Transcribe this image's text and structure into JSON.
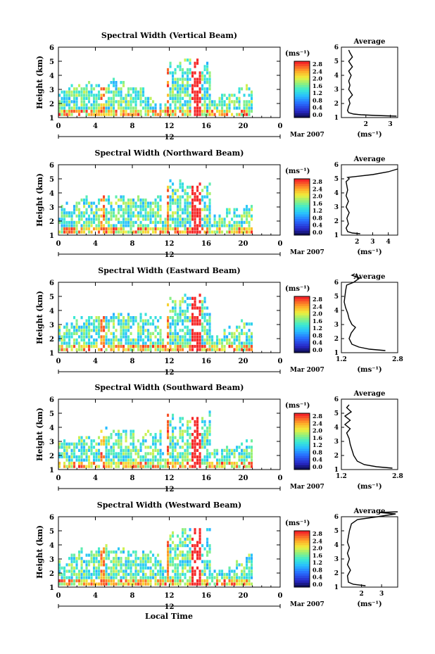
{
  "figure": {
    "xlabel": "Local Time"
  },
  "chart_data": [
    {
      "type": "heatmap",
      "title": "Spectral Width (Vertical Beam)",
      "ylabel": "Height (km)",
      "xticks": [
        "0",
        "4",
        "8",
        "12",
        "16",
        "20",
        "0"
      ],
      "xlim": [
        0,
        24
      ],
      "ylim": [
        1,
        6
      ],
      "yticks": [
        "1",
        "2",
        "3",
        "4",
        "5",
        "6"
      ],
      "date_label_day": "12",
      "date_label_month": "Mar 2007",
      "colorbar": {
        "unit": "(ms⁻¹)",
        "ticks": [
          "2.8",
          "2.4",
          "2.0",
          "1.6",
          "1.2",
          "0.8",
          "0.4",
          "0.0"
        ],
        "range": [
          0,
          2.8
        ]
      },
      "average": {
        "title": "Average",
        "xlabel": "(ms⁻¹)",
        "xlim": [
          1.0,
          3.3
        ],
        "xticks": [
          "2",
          "3"
        ],
        "xtick_values": [
          2,
          3
        ],
        "ylim": [
          1,
          6
        ],
        "yticks": [
          "1",
          "2",
          "3",
          "4",
          "5",
          "6"
        ],
        "profile": [
          [
            3.25,
            1.1
          ],
          [
            2.4,
            1.15
          ],
          [
            1.8,
            1.2
          ],
          [
            1.5,
            1.25
          ],
          [
            1.3,
            1.35
          ],
          [
            1.25,
            1.5
          ],
          [
            1.3,
            1.8
          ],
          [
            1.35,
            2.0
          ],
          [
            1.3,
            2.3
          ],
          [
            1.45,
            2.6
          ],
          [
            1.3,
            3.0
          ],
          [
            1.35,
            3.3
          ],
          [
            1.3,
            3.6
          ],
          [
            1.4,
            4.0
          ],
          [
            1.3,
            4.3
          ],
          [
            1.45,
            4.6
          ],
          [
            1.3,
            5.0
          ],
          [
            1.45,
            5.3
          ],
          [
            1.35,
            5.6
          ],
          [
            1.3,
            5.8
          ]
        ]
      }
    },
    {
      "type": "heatmap",
      "title": "Spectral Width (Northward Beam)",
      "ylabel": "Height (km)",
      "xticks": [
        "0",
        "4",
        "8",
        "12",
        "16",
        "20",
        "0"
      ],
      "xlim": [
        0,
        24
      ],
      "ylim": [
        1,
        6
      ],
      "yticks": [
        "1",
        "2",
        "3",
        "4",
        "5",
        "6"
      ],
      "date_label_day": "12",
      "date_label_month": "Mar 2007",
      "colorbar": {
        "unit": "(ms⁻¹)",
        "ticks": [
          "2.8",
          "2.4",
          "2.0",
          "1.6",
          "1.2",
          "0.8",
          "0.4",
          "0.0"
        ],
        "range": [
          0,
          2.8
        ]
      },
      "average": {
        "title": "Average",
        "xlabel": "(ms⁻¹)",
        "xlim": [
          1.0,
          4.6
        ],
        "xticks": [
          "2",
          "3",
          "4"
        ],
        "xtick_values": [
          2,
          3,
          4
        ],
        "ylim": [
          1,
          6
        ],
        "yticks": [
          "1",
          "2",
          "3",
          "4",
          "5",
          "6"
        ],
        "profile": [
          [
            2.2,
            1.1
          ],
          [
            1.7,
            1.15
          ],
          [
            1.4,
            1.25
          ],
          [
            1.3,
            1.5
          ],
          [
            1.45,
            1.8
          ],
          [
            1.35,
            2.2
          ],
          [
            1.5,
            2.6
          ],
          [
            1.3,
            3.0
          ],
          [
            1.45,
            3.4
          ],
          [
            1.3,
            3.8
          ],
          [
            1.4,
            4.2
          ],
          [
            1.35,
            4.5
          ],
          [
            1.3,
            4.8
          ],
          [
            1.5,
            5.0
          ],
          [
            1.4,
            5.1
          ],
          [
            3.0,
            5.3
          ],
          [
            4.0,
            5.5
          ],
          [
            4.6,
            5.7
          ]
        ]
      }
    },
    {
      "type": "heatmap",
      "title": "Spectral Width (Eastward Beam)",
      "ylabel": "Height (km)",
      "xticks": [
        "0",
        "4",
        "8",
        "12",
        "16",
        "20",
        "0"
      ],
      "xlim": [
        0,
        24
      ],
      "ylim": [
        1,
        6
      ],
      "yticks": [
        "1",
        "2",
        "3",
        "4",
        "5",
        "6"
      ],
      "date_label_day": "12",
      "date_label_month": "Mar 2007",
      "colorbar": {
        "unit": "(ms⁻¹)",
        "ticks": [
          "2.8",
          "2.4",
          "2.0",
          "1.6",
          "1.2",
          "0.8",
          "0.4",
          "0.0"
        ],
        "range": [
          0,
          2.8
        ]
      },
      "average": {
        "title": "Average",
        "xlabel": "(ms⁻¹)",
        "xlim": [
          1.2,
          2.8
        ],
        "xticks": [
          "1.2",
          "2.8"
        ],
        "xtick_values": [
          1.2,
          2.8
        ],
        "ylim": [
          1,
          6
        ],
        "yticks": [
          "1",
          "2",
          "3",
          "4",
          "5",
          "6"
        ],
        "profile": [
          [
            2.45,
            1.15
          ],
          [
            2.0,
            1.25
          ],
          [
            1.7,
            1.4
          ],
          [
            1.5,
            1.6
          ],
          [
            1.42,
            2.0
          ],
          [
            1.48,
            2.4
          ],
          [
            1.6,
            2.8
          ],
          [
            1.5,
            3.0
          ],
          [
            1.42,
            3.4
          ],
          [
            1.38,
            3.8
          ],
          [
            1.32,
            4.2
          ],
          [
            1.28,
            4.6
          ],
          [
            1.3,
            5.0
          ],
          [
            1.32,
            5.4
          ],
          [
            1.35,
            5.8
          ],
          [
            1.55,
            6.0
          ],
          [
            1.72,
            6.3
          ],
          [
            1.5,
            6.5
          ],
          [
            1.58,
            6.6
          ]
        ]
      }
    },
    {
      "type": "heatmap",
      "title": "Spectral Width (Southward Beam)",
      "ylabel": "Height (km)",
      "xticks": [
        "0",
        "4",
        "8",
        "12",
        "16",
        "20",
        "0"
      ],
      "xlim": [
        0,
        24
      ],
      "ylim": [
        1,
        6
      ],
      "yticks": [
        "1",
        "2",
        "3",
        "4",
        "5",
        "6"
      ],
      "date_label_day": "12",
      "date_label_month": "Mar 2007",
      "colorbar": {
        "unit": "(ms⁻¹)",
        "ticks": [
          "2.8",
          "2.4",
          "2.0",
          "1.6",
          "1.2",
          "0.8",
          "0.4",
          "0.0"
        ],
        "range": [
          0,
          2.8
        ]
      },
      "average": {
        "title": "Average",
        "xlabel": "(ms⁻¹)",
        "xlim": [
          1.2,
          2.8
        ],
        "xticks": [
          "1.2",
          "2.8"
        ],
        "xtick_values": [
          1.2,
          2.8
        ],
        "ylim": [
          1,
          6
        ],
        "yticks": [
          "1",
          "2",
          "3",
          "4",
          "5",
          "6"
        ],
        "profile": [
          [
            2.65,
            1.1
          ],
          [
            2.2,
            1.2
          ],
          [
            1.85,
            1.35
          ],
          [
            1.65,
            1.6
          ],
          [
            1.55,
            2.0
          ],
          [
            1.5,
            2.4
          ],
          [
            1.45,
            2.8
          ],
          [
            1.42,
            3.2
          ],
          [
            1.35,
            3.6
          ],
          [
            1.45,
            3.9
          ],
          [
            1.3,
            4.2
          ],
          [
            1.45,
            4.5
          ],
          [
            1.3,
            4.8
          ],
          [
            1.48,
            5.1
          ],
          [
            1.35,
            5.4
          ],
          [
            1.42,
            5.6
          ]
        ]
      }
    },
    {
      "type": "heatmap",
      "title": "Spectral Width (Westward Beam)",
      "ylabel": "Height (km)",
      "xticks": [
        "0",
        "4",
        "8",
        "12",
        "16",
        "20",
        "0"
      ],
      "xlim": [
        0,
        24
      ],
      "ylim": [
        1,
        6
      ],
      "yticks": [
        "1",
        "2",
        "3",
        "4",
        "5",
        "6"
      ],
      "date_label_day": "12",
      "date_label_month": "Mar 2007",
      "colorbar": {
        "unit": "(ms⁻¹)",
        "ticks": [
          "2.8",
          "2.4",
          "2.0",
          "1.6",
          "1.2",
          "0.8",
          "0.4",
          "0.0"
        ],
        "range": [
          0,
          2.8
        ]
      },
      "average": {
        "title": "Average",
        "xlabel": "(ms⁻¹)",
        "xlim": [
          1.0,
          3.8
        ],
        "xticks": [
          "2",
          "3"
        ],
        "xtick_values": [
          2,
          3
        ],
        "ylim": [
          1,
          6
        ],
        "yticks": [
          "1",
          "2",
          "3",
          "4",
          "5",
          "6"
        ],
        "profile": [
          [
            2.2,
            1.1
          ],
          [
            1.6,
            1.2
          ],
          [
            1.35,
            1.35
          ],
          [
            1.3,
            1.8
          ],
          [
            1.45,
            2.2
          ],
          [
            1.3,
            2.6
          ],
          [
            1.4,
            3.0
          ],
          [
            1.3,
            3.4
          ],
          [
            1.4,
            3.8
          ],
          [
            1.3,
            4.2
          ],
          [
            1.35,
            4.6
          ],
          [
            1.4,
            5.0
          ],
          [
            1.5,
            5.5
          ],
          [
            1.8,
            5.8
          ],
          [
            2.8,
            6.0
          ],
          [
            3.7,
            6.2
          ],
          [
            2.9,
            6.3
          ],
          [
            3.8,
            6.35
          ]
        ]
      }
    }
  ]
}
